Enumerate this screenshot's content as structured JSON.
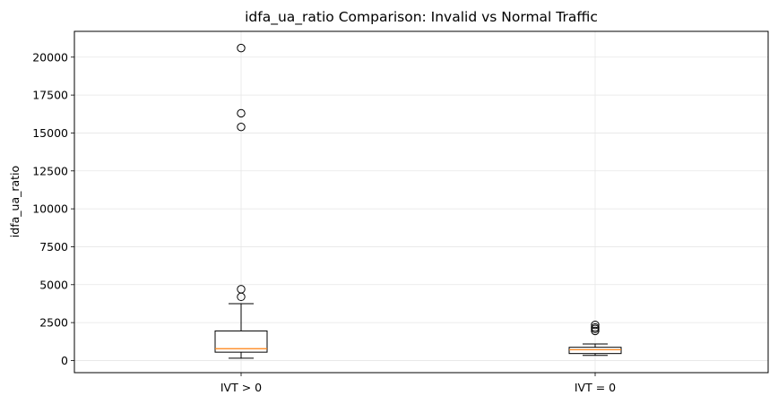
{
  "chart_data": {
    "type": "box",
    "title": "idfa_ua_ratio Comparison: Invalid vs Normal Traffic",
    "xlabel": "",
    "ylabel": "idfa_ua_ratio",
    "ylim": [
      -800,
      21700
    ],
    "yticks": [
      0,
      2500,
      5000,
      7500,
      10000,
      12500,
      15000,
      17500,
      20000
    ],
    "ytick_labels": [
      "0",
      "2500",
      "5000",
      "7500",
      "10000",
      "12500",
      "15000",
      "17500",
      "20000"
    ],
    "grid": true,
    "categories": [
      "IVT > 0",
      "IVT = 0"
    ],
    "boxes": [
      {
        "label": "IVT > 0",
        "whisker_low": 150,
        "q1": 550,
        "median": 780,
        "q3": 1950,
        "whisker_high": 3750,
        "outliers": [
          4200,
          4700,
          15400,
          16300,
          20600
        ]
      },
      {
        "label": "IVT = 0",
        "whisker_low": 340,
        "q1": 460,
        "median": 710,
        "q3": 870,
        "whisker_high": 1090,
        "outliers": [
          1950,
          2080,
          2180,
          2350
        ]
      }
    ],
    "colors": {
      "box": "#000000",
      "median": "#ff7f0e",
      "grid": "#e6e6e6"
    }
  }
}
